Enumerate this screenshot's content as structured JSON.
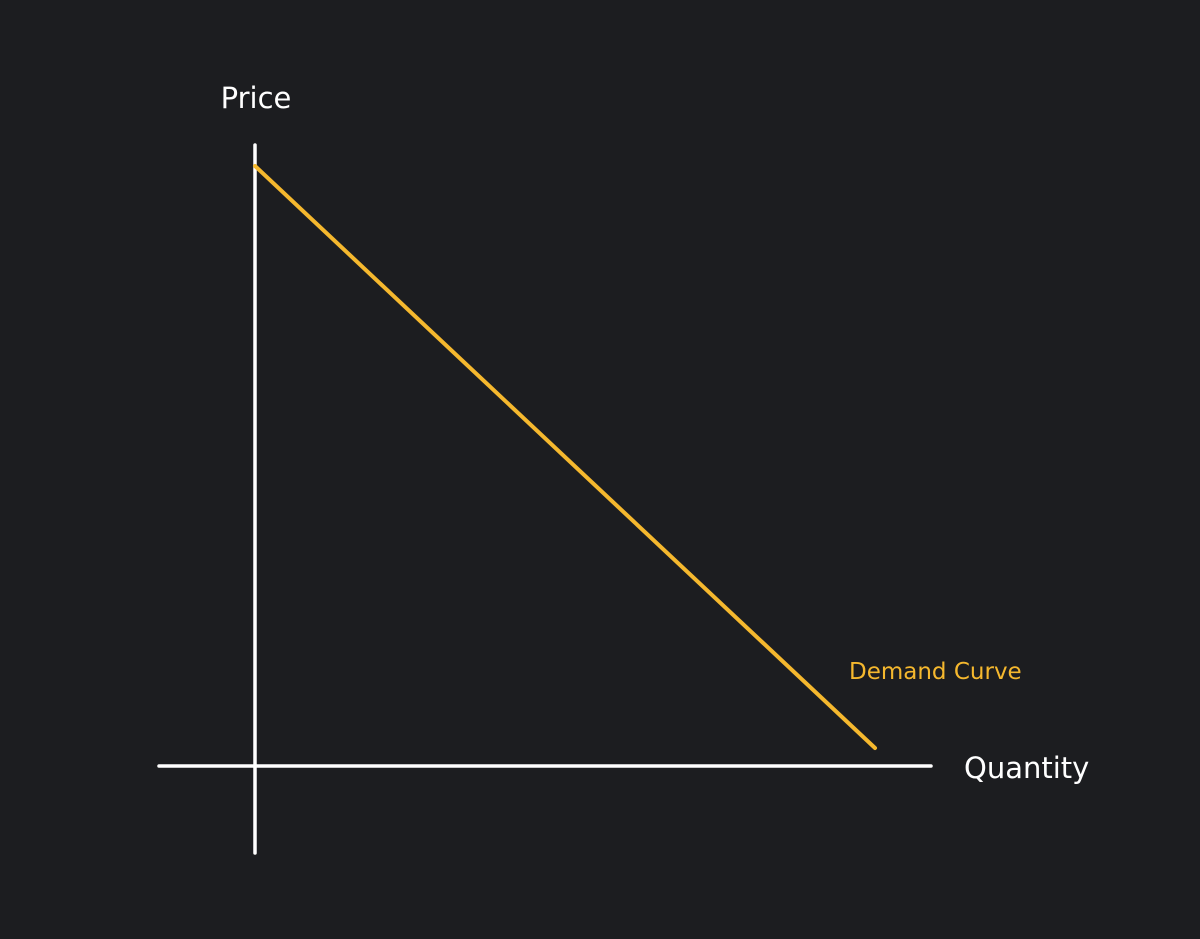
{
  "chart_data": {
    "type": "line",
    "title": "",
    "xlabel": "Quantity",
    "ylabel": "Price",
    "xlim": [
      0,
      1
    ],
    "ylim": [
      0,
      1
    ],
    "grid": false,
    "ticks": false,
    "series": [
      {
        "name": "Demand Curve",
        "color": "#f5b82e",
        "points": [
          [
            0,
            1
          ],
          [
            1,
            0.03
          ]
        ]
      }
    ]
  },
  "colors": {
    "background": "#1c1d20",
    "axes": "#ffffff",
    "accent": "#f5b82e"
  }
}
